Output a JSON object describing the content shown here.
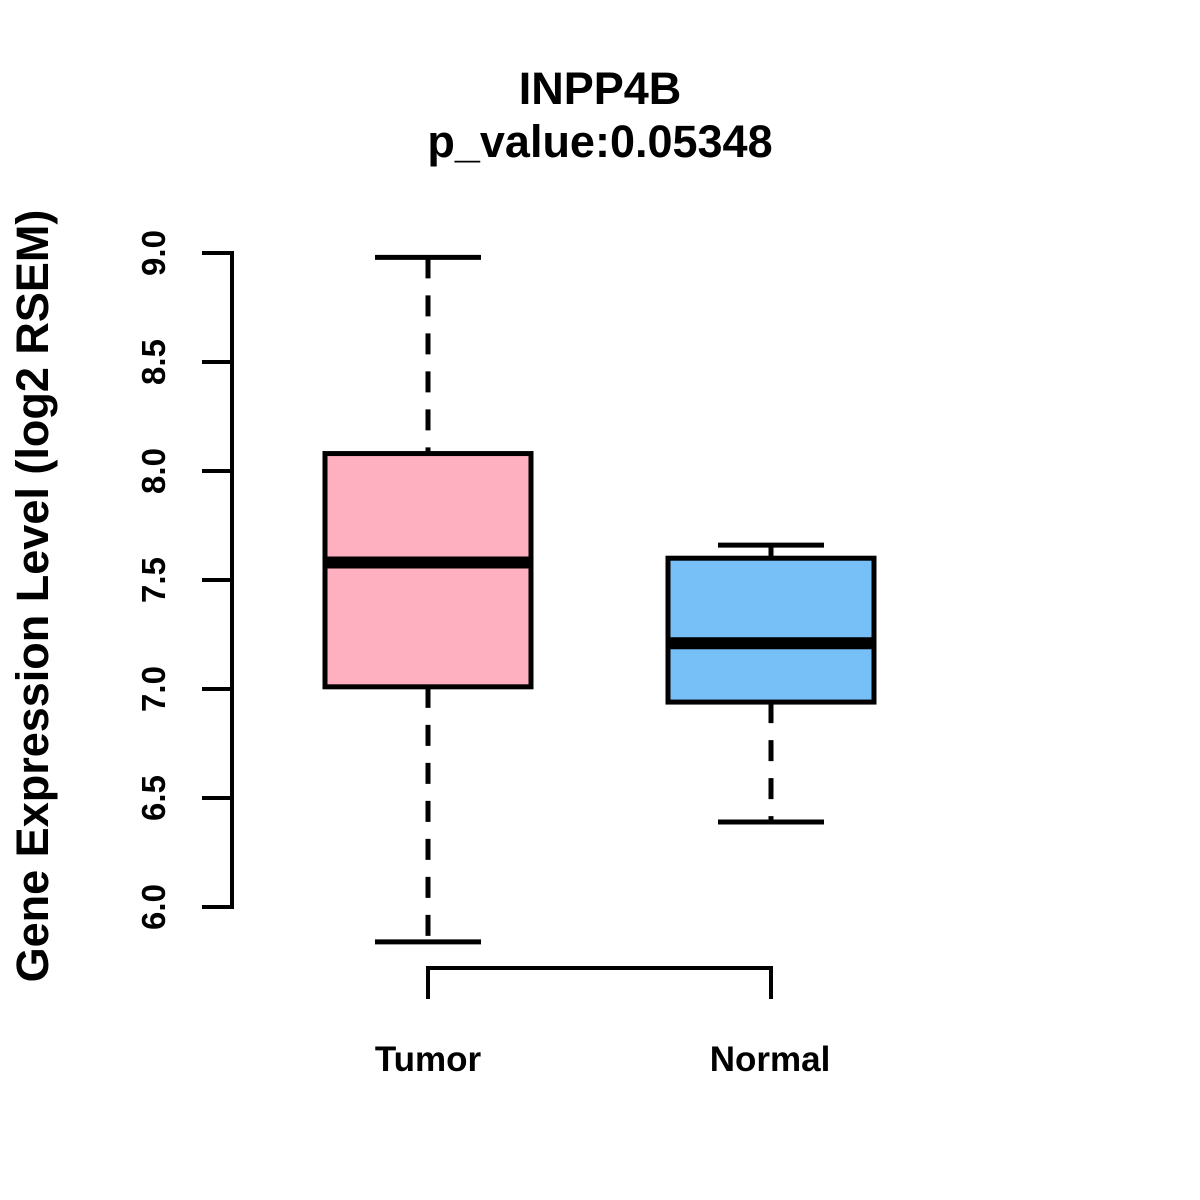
{
  "chart_data": {
    "type": "boxplot",
    "title": "INPP4B",
    "subtitle": "p_value:0.05348",
    "ylabel": "Gene Expression Level (log2 RSEM)",
    "categories": [
      "Tumor",
      "Normal"
    ],
    "series": [
      {
        "name": "Tumor",
        "whisker_low": 5.84,
        "q1": 7.01,
        "median": 7.58,
        "q3": 8.08,
        "whisker_high": 8.98,
        "fill": "#FFB0C0"
      },
      {
        "name": "Normal",
        "whisker_low": 6.39,
        "q1": 6.94,
        "median": 7.21,
        "q3": 7.6,
        "whisker_high": 7.66,
        "fill": "#76BFF7"
      }
    ],
    "yticks": [
      6.0,
      6.5,
      7.0,
      7.5,
      8.0,
      8.5,
      9.0
    ],
    "ylim": [
      6.0,
      9.0
    ],
    "grid": false,
    "legend": "none",
    "colors": {
      "axis": "#000000",
      "text": "#000000",
      "box_border": "#000000",
      "background": "#FFFFFF"
    }
  }
}
